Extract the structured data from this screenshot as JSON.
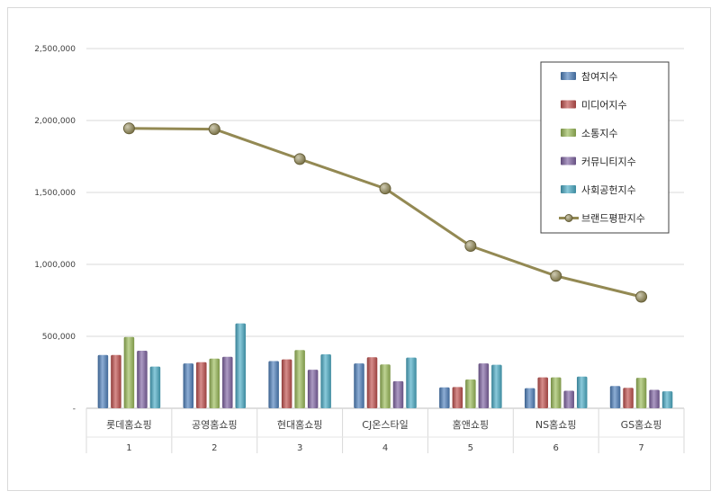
{
  "chart_data": {
    "type": "bar",
    "categories": [
      "롯데홈쇼핑",
      "공영홈쇼핑",
      "현대홈쇼핑",
      "CJ온스타일",
      "홈앤쇼핑",
      "NS홈쇼핑",
      "GS홈쇼핑"
    ],
    "rank_labels": [
      "1",
      "2",
      "3",
      "4",
      "5",
      "6",
      "7"
    ],
    "ylim": [
      0,
      2500000
    ],
    "y_ticks": [
      "-",
      "500,000",
      "1,000,000",
      "1,500,000",
      "2,000,000",
      "2,500,000"
    ],
    "grid": true,
    "legend_position": "top-right",
    "series": [
      {
        "name": "참여지수",
        "kind": "bar",
        "color": "#4f81bd",
        "values": [
          370000,
          312000,
          328000,
          312000,
          145000,
          140000,
          155000
        ]
      },
      {
        "name": "미디어지수",
        "kind": "bar",
        "color": "#c0504d",
        "values": [
          370000,
          320000,
          340000,
          355000,
          148000,
          215000,
          142000
        ]
      },
      {
        "name": "소통지수",
        "kind": "bar",
        "color": "#9bbb59",
        "values": [
          495000,
          345000,
          405000,
          305000,
          200000,
          215000,
          212000
        ]
      },
      {
        "name": "커뮤니티지수",
        "kind": "bar",
        "color": "#8064a2",
        "values": [
          400000,
          358000,
          268000,
          188000,
          312000,
          122000,
          128000
        ]
      },
      {
        "name": "사회공헌지수",
        "kind": "bar",
        "color": "#4bacc6",
        "values": [
          290000,
          590000,
          375000,
          352000,
          302000,
          220000,
          118000
        ]
      },
      {
        "name": "브랜드평판지수",
        "kind": "line",
        "color": "#938953",
        "values": [
          1945000,
          1940000,
          1732000,
          1527000,
          1128000,
          920000,
          775000
        ]
      }
    ]
  }
}
